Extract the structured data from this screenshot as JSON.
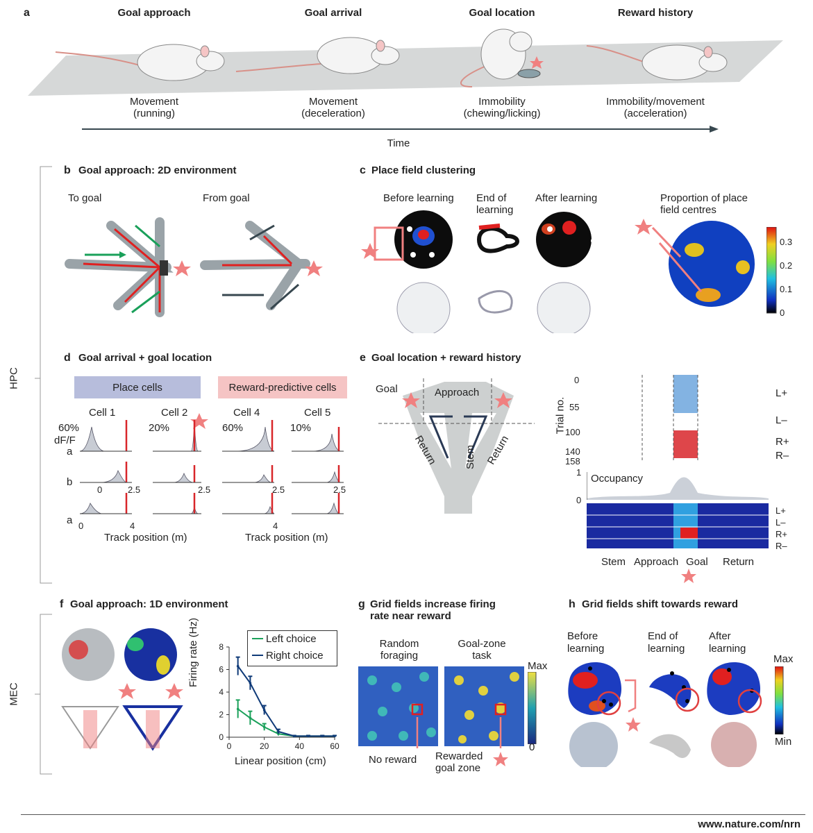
{
  "panel_a": {
    "letter": "a",
    "stages": [
      {
        "title": "Goal approach",
        "line1": "Movement",
        "line2": "(running)"
      },
      {
        "title": "Goal arrival",
        "line1": "Movement",
        "line2": "(deceleration)"
      },
      {
        "title": "Goal location",
        "line1": "Immobility",
        "line2": "(chewing/licking)"
      },
      {
        "title": "Reward history",
        "line1": "Immobility/movement",
        "line2": "(acceleration)"
      }
    ],
    "time_label": "Time"
  },
  "regions": {
    "hpc": "HPC",
    "mec": "MEC"
  },
  "panel_b": {
    "letter": "b",
    "title": "Goal approach: 2D environment",
    "to_goal": "To goal",
    "from_goal": "From goal"
  },
  "panel_c": {
    "letter": "c",
    "title": "Place field clustering",
    "before": "Before learning",
    "end1": "End of",
    "end2": "learning",
    "after": "After learning",
    "prop1": "Proportion of place",
    "prop2": "field centres",
    "scale": [
      "0.3",
      "0.2",
      "0.1",
      "0"
    ]
  },
  "panel_d": {
    "letter": "d",
    "title": "Goal arrival + goal location",
    "place_cells": "Place cells",
    "reward_cells": "Reward-predictive cells",
    "cells": [
      "Cell 1",
      "Cell 2",
      "Cell 4",
      "Cell 5"
    ],
    "scalebars": [
      "60%",
      "20%",
      "60%",
      "10%"
    ],
    "dff": "dF/F",
    "rows": [
      "a",
      "b",
      "a"
    ],
    "tick_0": "0",
    "tick_mid": "2.5",
    "tick_end": "4",
    "xlabel": "Track position (m)"
  },
  "panel_e": {
    "letter": "e",
    "title": "Goal location + reward history",
    "goal": "Goal",
    "approach": "Approach",
    "stem": "Stem",
    "return": "Return",
    "trial_label": "Trial no.",
    "trial_ticks": [
      "0",
      "55",
      "100",
      "140",
      "158"
    ],
    "conds": [
      "L+",
      "L–",
      "R+",
      "R–"
    ],
    "occupancy": "Occupancy",
    "occ_1": "1",
    "occ_0": "0",
    "bottom": [
      "Stem",
      "Approach",
      "Goal",
      "Return"
    ]
  },
  "panel_f": {
    "letter": "f",
    "title": "Goal approach: 1D environment",
    "ylabel": "Firing rate (Hz)",
    "xlabel": "Linear position (cm)",
    "legend_left": "Left choice",
    "legend_right": "Right choice"
  },
  "panel_g": {
    "letter": "g",
    "title1": "Grid fields increase firing",
    "title2": "rate near reward",
    "random1": "Random",
    "random2": "foraging",
    "goal1": "Goal-zone",
    "goal2": "task",
    "max": "Max",
    "zero": "0",
    "no_reward": "No reward",
    "rewarded1": "Rewarded",
    "rewarded2": "goal zone"
  },
  "panel_h": {
    "letter": "h",
    "title": "Grid fields shift towards reward",
    "before1": "Before",
    "before2": "learning",
    "end1": "End of",
    "end2": "learning",
    "after1": "After",
    "after2": "learning",
    "max": "Max",
    "min": "Min"
  },
  "footer": "www.nature.com/nrn",
  "colors": {
    "star": "#f08080",
    "green": "#1aa05a",
    "navy": "#0f3a78",
    "red": "#d8262a",
    "track": "#cfd2d2"
  },
  "chart_data": {
    "type": "line",
    "xlabel": "Linear position (cm)",
    "ylabel": "Firing rate (Hz)",
    "xlim": [
      0,
      60
    ],
    "ylim": [
      0,
      8
    ],
    "xticks": [
      0,
      20,
      40,
      60
    ],
    "yticks": [
      0,
      2,
      4,
      6,
      8
    ],
    "x": [
      5,
      12,
      20,
      28,
      37,
      45,
      53,
      60
    ],
    "series": [
      {
        "name": "Left choice",
        "color": "#1aa05a",
        "values": [
          2.5,
          1.7,
          0.9,
          0.3,
          0.1,
          0.1,
          0.1,
          0.1
        ],
        "err": [
          0.8,
          0.6,
          0.3,
          0.15,
          0.05,
          0.05,
          0.05,
          0.05
        ]
      },
      {
        "name": "Right choice",
        "color": "#0f3a78",
        "values": [
          6.3,
          4.8,
          2.4,
          0.5,
          0.1,
          0.1,
          0.1,
          0.1
        ],
        "err": [
          0.8,
          0.6,
          0.4,
          0.2,
          0.05,
          0.05,
          0.05,
          0.05
        ]
      }
    ],
    "legend": "top-right"
  }
}
